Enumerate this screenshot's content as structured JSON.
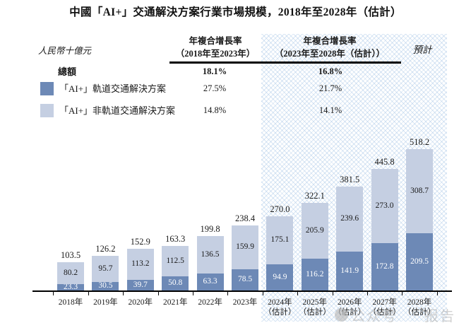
{
  "title": "中國「AI+」交通解決方案行業市場規模，2018年至2028年（估計）",
  "unit_label": "人民幣十億元",
  "forecast_label": "預計",
  "header": {
    "cagr1_line1": "年複合增長率",
    "cagr1_line2": "（2018年至2023年）",
    "cagr2_line1": "年複合增長率",
    "cagr2_line2": "（2023年至2028年（估計））"
  },
  "legend": {
    "rows": [
      {
        "label": "總額",
        "cagr_2018_2023": "18.1%",
        "cagr_2023_2028": "16.8%"
      },
      {
        "label": "「AI+」軌道交通解決方案",
        "swatch": "#6d89b6",
        "cagr_2018_2023": "27.5%",
        "cagr_2023_2028": "21.7%"
      },
      {
        "label": "「AI+」非軌道交通解決方案",
        "swatch": "#c5cfe2",
        "cagr_2018_2023": "14.8%",
        "cagr_2023_2028": "14.1%"
      }
    ]
  },
  "watermark": {
    "icon": "circle-logo",
    "prefix": "公众号",
    "suffix": "报告"
  },
  "chart_data": {
    "type": "bar",
    "stacked": true,
    "title": "中國「AI+」交通解決方案行業市場規模，2018年至2028年（估計）",
    "ylabel": "人民幣十億元",
    "categories": [
      "2018年",
      "2019年",
      "2020年",
      "2021年",
      "2022年",
      "2023年",
      "2024年",
      "2025年",
      "2026年",
      "2027年",
      "2028年"
    ],
    "estimated_from_index": 6,
    "estimated_suffix": "（估計）",
    "series": [
      {
        "name": "「AI+」軌道交通解決方案",
        "color": "#6d89b6",
        "label_color": "#ffffff",
        "values": [
          23.3,
          30.5,
          39.7,
          50.8,
          63.3,
          78.5,
          94.9,
          116.2,
          141.9,
          172.8,
          209.5
        ]
      },
      {
        "name": "「AI+」非軌道交通解決方案",
        "color": "#c5cfe2",
        "label_color": "#1a1a1a",
        "values": [
          80.2,
          95.7,
          113.2,
          112.5,
          136.5,
          159.9,
          175.1,
          205.9,
          239.6,
          273.0,
          308.7
        ]
      }
    ],
    "totals": [
      103.5,
      126.2,
      152.9,
      163.3,
      199.8,
      238.4,
      270.0,
      322.1,
      381.5,
      445.8,
      518.2
    ],
    "cagr": {
      "total": {
        "label": "總額",
        "y2018_2023": "18.1%",
        "y2023_2028": "16.8%"
      },
      "rail": {
        "y2018_2023": "27.5%",
        "y2023_2028": "21.7%"
      },
      "non_rail": {
        "y2018_2023": "14.8%",
        "y2023_2028": "14.1%"
      }
    },
    "forecast_region_label": "預計",
    "grid": false,
    "legend_position": "top-left"
  }
}
